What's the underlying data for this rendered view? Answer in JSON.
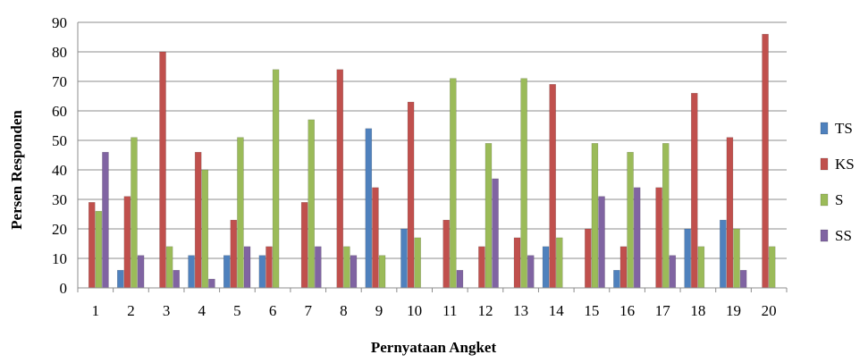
{
  "chart_data": {
    "type": "bar",
    "title": "",
    "xlabel": "Pernyataan Angket",
    "ylabel": "Persen Responden",
    "ylim": [
      0,
      90
    ],
    "ystep": 10,
    "grid": true,
    "legend_position": "right",
    "categories": [
      "1",
      "2",
      "3",
      "4",
      "5",
      "6",
      "7",
      "8",
      "9",
      "10",
      "11",
      "12",
      "13",
      "14",
      "15",
      "16",
      "17",
      "18",
      "19",
      "20"
    ],
    "series": [
      {
        "name": "TS",
        "color": "#4f81bd",
        "values": [
          0,
          6,
          0,
          11,
          11,
          11,
          0,
          0,
          54,
          20,
          0,
          0,
          0,
          14,
          0,
          6,
          0,
          20,
          23,
          0
        ]
      },
      {
        "name": "KS",
        "color": "#c0504d",
        "values": [
          29,
          31,
          80,
          46,
          23,
          14,
          29,
          74,
          34,
          63,
          23,
          14,
          17,
          69,
          20,
          14,
          34,
          66,
          51,
          86
        ]
      },
      {
        "name": "S",
        "color": "#9bbb59",
        "values": [
          26,
          51,
          14,
          40,
          51,
          74,
          57,
          14,
          11,
          17,
          71,
          49,
          71,
          17,
          49,
          46,
          49,
          14,
          20,
          14
        ]
      },
      {
        "name": "SS",
        "color": "#8064a2",
        "values": [
          46,
          11,
          6,
          3,
          14,
          0,
          14,
          11,
          0,
          0,
          6,
          37,
          11,
          0,
          31,
          34,
          11,
          0,
          6,
          0
        ]
      }
    ]
  }
}
